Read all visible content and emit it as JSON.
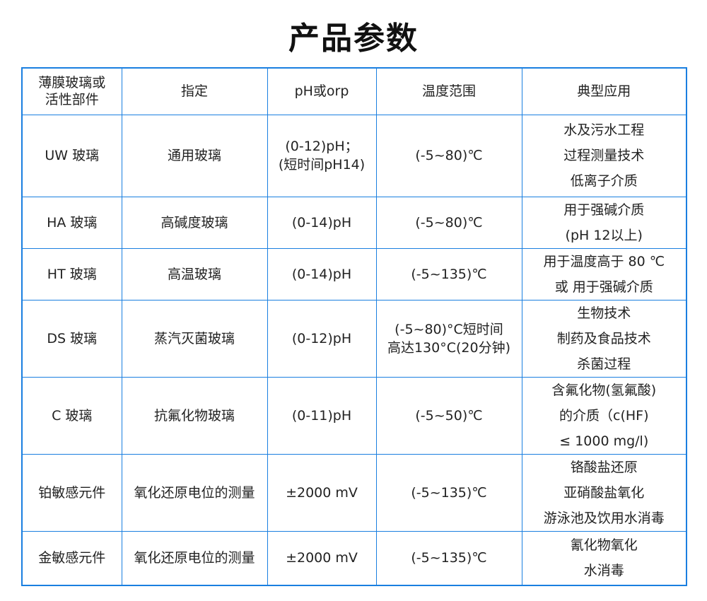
{
  "title": "产品参数",
  "table": {
    "headers": [
      [
        "薄膜玻璃或",
        "活性部件"
      ],
      [
        "指定"
      ],
      [
        "pH或orp"
      ],
      [
        "温度范围"
      ],
      [
        "典型应用"
      ]
    ],
    "rows": [
      [
        [
          "UW 玻璃"
        ],
        [
          "通用玻璃"
        ],
        [
          "(0-12)pH；",
          "(短时间pH14)"
        ],
        [
          "(-5~80)℃"
        ],
        [
          "水及污水工程",
          "过程测量技术",
          "低离子介质"
        ]
      ],
      [
        [
          "HA 玻璃"
        ],
        [
          "高碱度玻璃"
        ],
        [
          "(0-14)pH"
        ],
        [
          "(-5~80)℃"
        ],
        [
          "用于强碱介质",
          "(pH 12以上)"
        ]
      ],
      [
        [
          "HT 玻璃"
        ],
        [
          "高温玻璃"
        ],
        [
          "(0-14)pH"
        ],
        [
          "(-5~135)℃"
        ],
        [
          "用于温度高于 80 ℃",
          "或 用于强碱介质"
        ]
      ],
      [
        [
          "DS 玻璃"
        ],
        [
          "蒸汽灭菌玻璃"
        ],
        [
          "(0-12)pH"
        ],
        [
          "(-5~80)°C短时间",
          "高达130°C(20分钟)"
        ],
        [
          "生物技术",
          "制药及食品技术",
          "杀菌过程"
        ]
      ],
      [
        [
          "C 玻璃"
        ],
        [
          "抗氟化物玻璃"
        ],
        [
          "(0-11)pH"
        ],
        [
          "(-5~50)℃"
        ],
        [
          "含氟化物(氢氟酸)",
          "的介质（c(HF)",
          "≤ 1000 mg/l)"
        ]
      ],
      [
        [
          "铂敏感元件"
        ],
        [
          "氧化还原电位的测量"
        ],
        [
          "±2000 mV"
        ],
        [
          "(-5~135)℃"
        ],
        [
          "铬酸盐还原",
          "亚硝酸盐氧化",
          "游泳池及饮用水消毒"
        ]
      ],
      [
        [
          "金敏感元件"
        ],
        [
          "氧化还原电位的测量"
        ],
        [
          "±2000 mV"
        ],
        [
          "(-5~135)℃"
        ],
        [
          "氰化物氧化",
          "水消毒"
        ]
      ]
    ]
  },
  "colors": {
    "border": "#1a7fe0"
  }
}
